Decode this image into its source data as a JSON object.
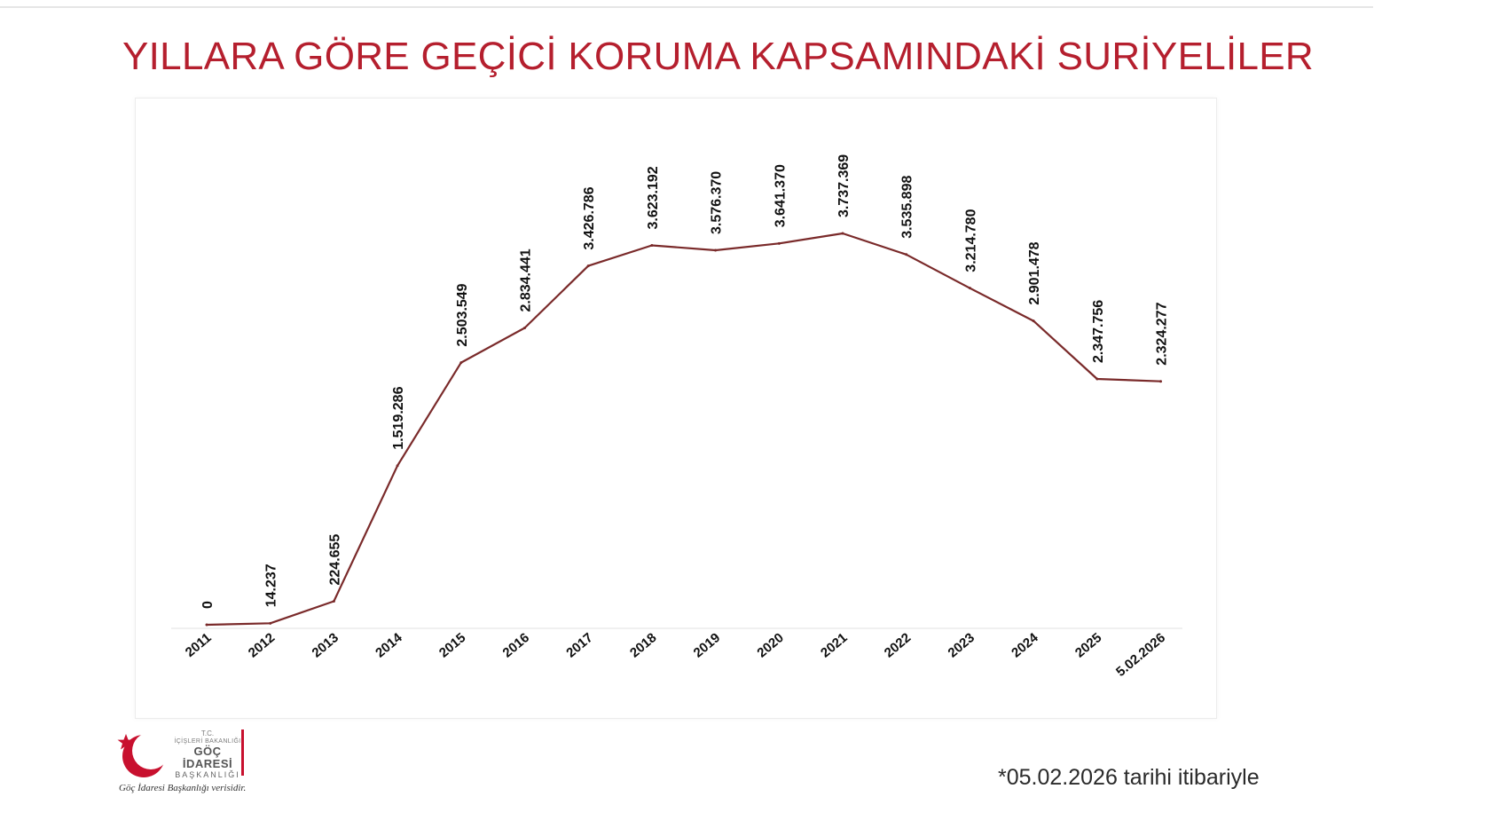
{
  "page": {
    "title": "YILLARA GÖRE GEÇİCİ KORUMA KAPSAMINDAKİ SURİYELİLER",
    "footnote": "*05.02.2026 tarihi itibariyle"
  },
  "logo": {
    "icon": "crescent-star-icon",
    "tc": "T.C.",
    "ministry": "İÇİŞLERİ BAKANLIĞI",
    "agency": "GÖÇ İDARESİ",
    "presidency": "BAŞKANLIĞI",
    "source_note": "Göç İdaresi Başkanlığı verisidir."
  },
  "colors": {
    "title": "#b51f2e",
    "line": "#7a2a2a",
    "labels": "#111111",
    "baseline": "#e0e0e0"
  },
  "chart_data": {
    "type": "line",
    "title": "YILLARA GÖRE GEÇİCİ KORUMA KAPSAMINDAKİ SURİYELİLER",
    "xlabel": "",
    "ylabel": "",
    "grid": false,
    "legend": "none",
    "ylim": [
      0,
      4000000
    ],
    "categories": [
      "2011",
      "2012",
      "2013",
      "2014",
      "2015",
      "2016",
      "2017",
      "2018",
      "2019",
      "2020",
      "2021",
      "2022",
      "2023",
      "2024",
      "2025",
      "5.02.2026"
    ],
    "values": [
      0,
      14237,
      224655,
      1519286,
      2503549,
      2834441,
      3426786,
      3623192,
      3576370,
      3641370,
      3737369,
      3535898,
      3214780,
      2901478,
      2347756,
      2324277
    ],
    "value_labels": [
      "0",
      "14.237",
      "224.655",
      "1.519.286",
      "2.503.549",
      "2.834.441",
      "3.426.786",
      "3.623.192",
      "3.576.370",
      "3.641.370",
      "3.737.369",
      "3.535.898",
      "3.214.780",
      "2.901.478",
      "2.347.756",
      "2.324.277"
    ]
  }
}
